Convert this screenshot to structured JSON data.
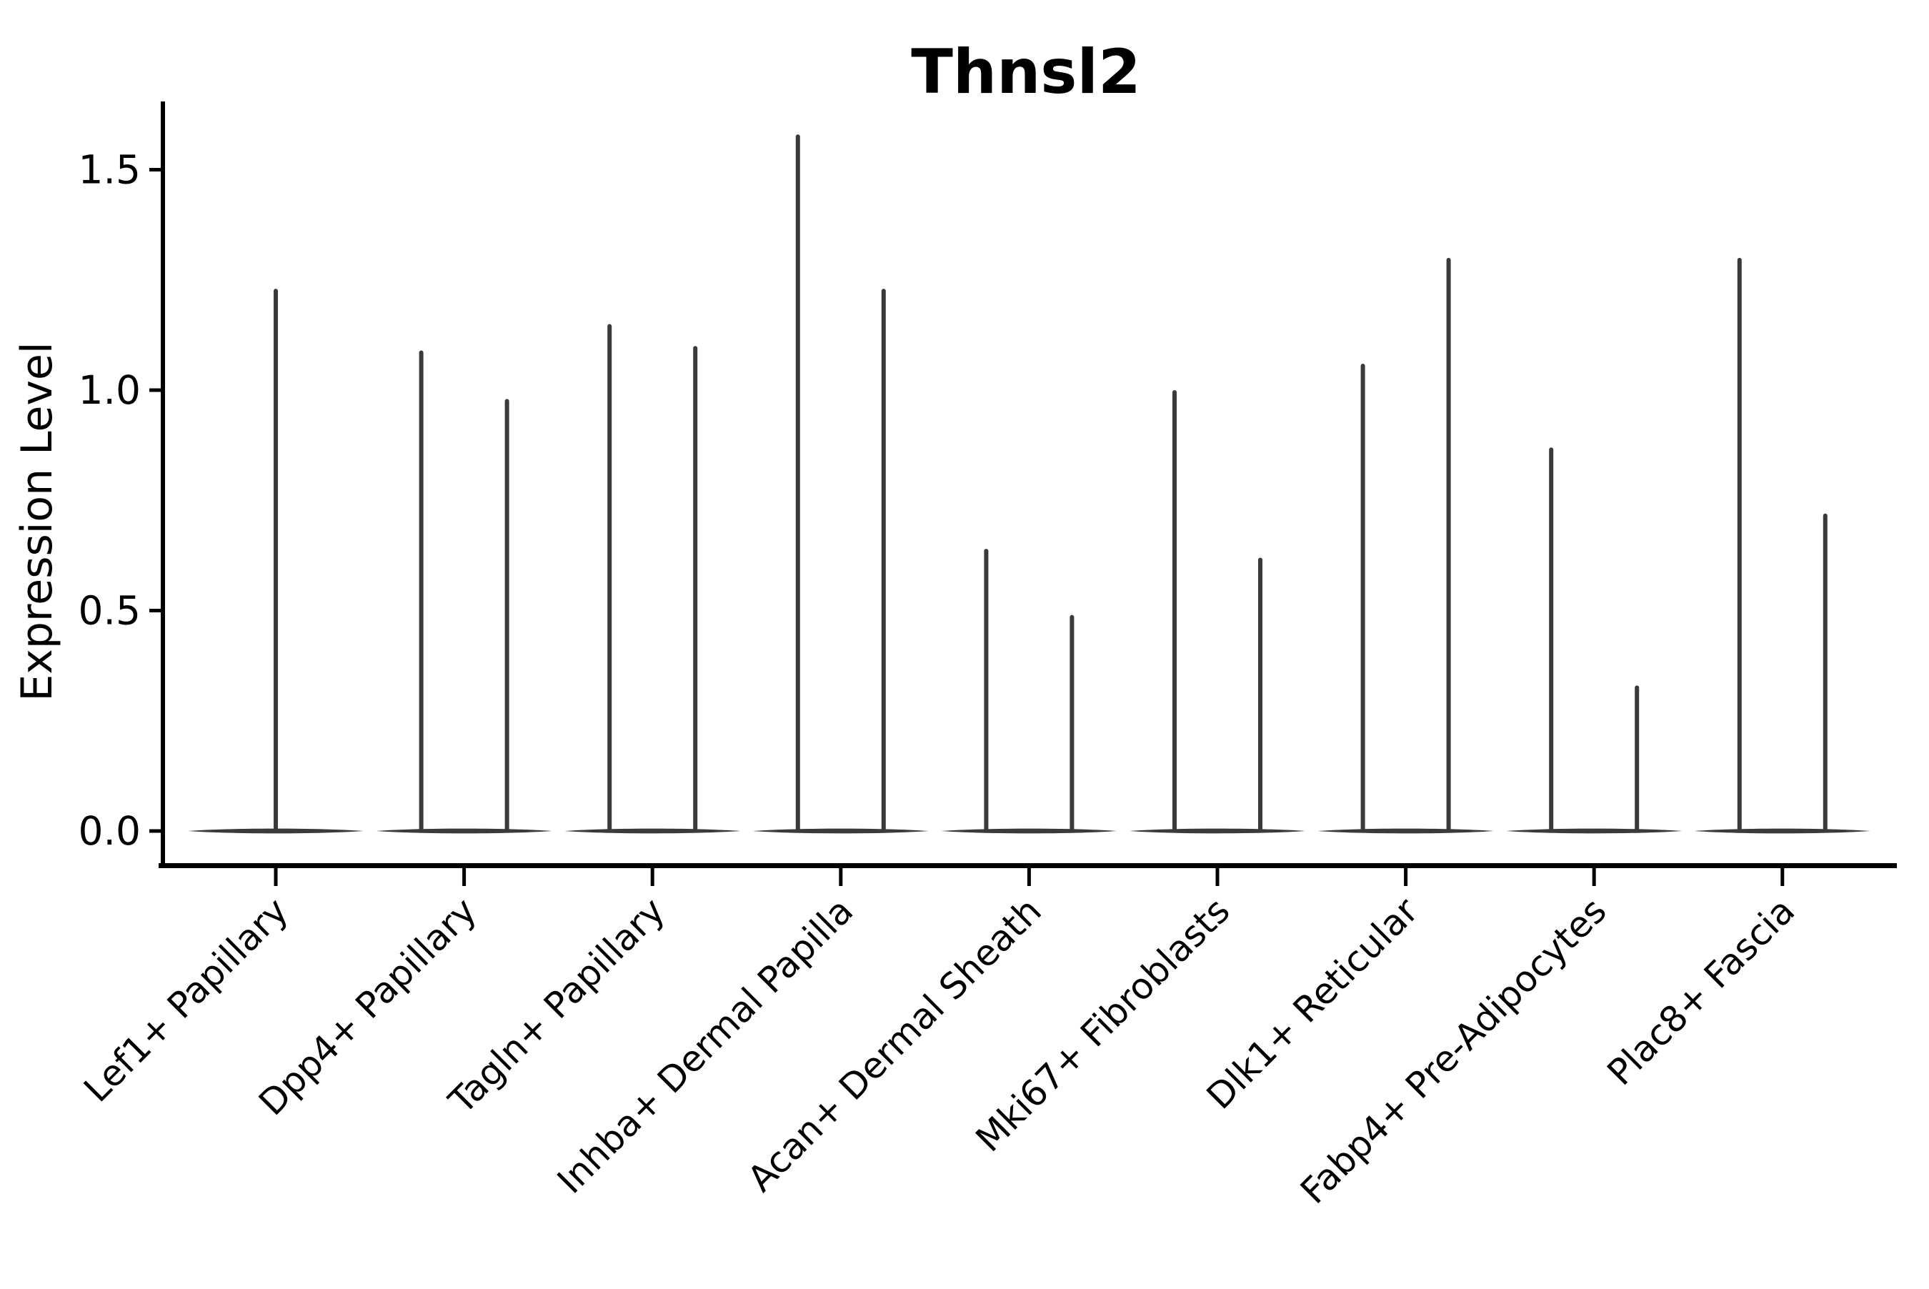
{
  "chart_data": {
    "type": "violin",
    "title": "Thnsl2",
    "xlabel": "",
    "ylabel": "Expression Level",
    "ylim": [
      -0.08,
      1.66
    ],
    "yticks": [
      0.0,
      0.5,
      1.0,
      1.5
    ],
    "grid": false,
    "legend": "none",
    "violin_color": "#3a3a3a",
    "axis_color": "#000000",
    "categories": [
      "Lef1+ Papillary",
      "Dpp4+ Papillary",
      "Tagln+ Papillary",
      "Inhba+ Dermal Papilla",
      "Acan+ Dermal Sheath",
      "Mki67+ Fibroblasts",
      "Dlk1+ Reticular",
      "Fabp4+ Pre-Adipocytes",
      "Plac8+ Fascia"
    ],
    "violins": [
      {
        "category": "Lef1+ Papillary",
        "spike_maxima": [
          1.23
        ]
      },
      {
        "category": "Dpp4+ Papillary",
        "spike_maxima": [
          1.09,
          0.98
        ]
      },
      {
        "category": "Tagln+ Papillary",
        "spike_maxima": [
          1.15,
          1.1
        ]
      },
      {
        "category": "Inhba+ Dermal Papilla",
        "spike_maxima": [
          1.58,
          1.23
        ]
      },
      {
        "category": "Acan+ Dermal Sheath",
        "spike_maxima": [
          0.64,
          0.49
        ]
      },
      {
        "category": "Mki67+ Fibroblasts",
        "spike_maxima": [
          1.0,
          0.62
        ]
      },
      {
        "category": "Dlk1+ Reticular",
        "spike_maxima": [
          1.06,
          1.3
        ]
      },
      {
        "category": "Fabp4+ Pre-Adipocytes",
        "spike_maxima": [
          0.87,
          0.33
        ]
      },
      {
        "category": "Plac8+ Fascia",
        "spike_maxima": [
          1.3,
          0.72
        ]
      }
    ]
  }
}
